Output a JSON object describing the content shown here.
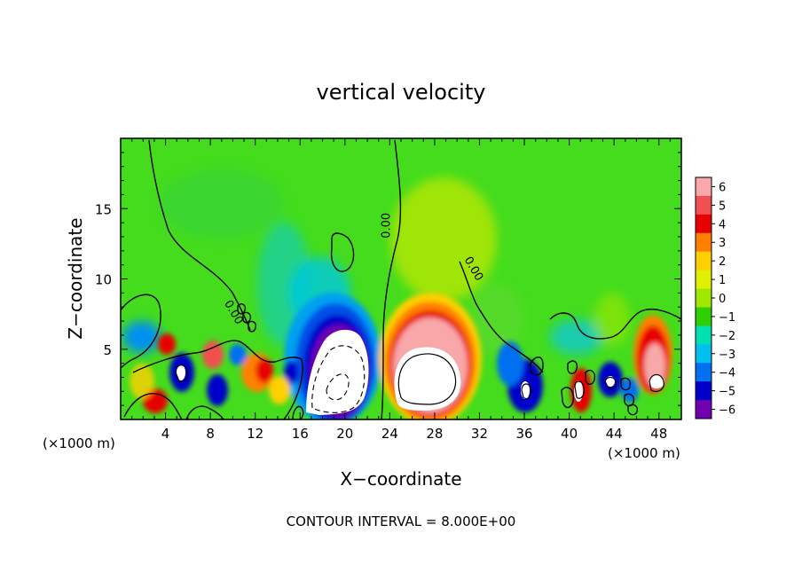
{
  "chart_data": {
    "type": "heatmap",
    "title": "vertical velocity",
    "xlabel": "X−coordinate",
    "ylabel": "Z−coordinate",
    "x_unit_left": "(×1000 m)",
    "x_unit_right": "(×1000 m)",
    "xlim": [
      0,
      50
    ],
    "ylim": [
      0,
      20
    ],
    "x_ticks": [
      4,
      8,
      12,
      16,
      20,
      24,
      28,
      32,
      36,
      40,
      44,
      48
    ],
    "y_ticks": [
      5,
      10,
      15
    ],
    "footer": "CONTOUR INTERVAL = 8.000E+00",
    "colorbar": {
      "levels": [
        "6",
        "5",
        "4",
        "3",
        "2",
        "1",
        "0",
        "−1",
        "−2",
        "−3",
        "−4",
        "−5",
        "−6"
      ],
      "colors": [
        "#f8a8a8",
        "#f05050",
        "#e80000",
        "#ff8000",
        "#ffd000",
        "#e0f000",
        "#a0e800",
        "#30d000",
        "#00e0b0",
        "#00c0f0",
        "#0070f0",
        "#0000c8",
        "#7000b0"
      ]
    },
    "contour_labels": [
      {
        "text": "0.00",
        "x": 9.8,
        "z": 7.5
      },
      {
        "text": "0.00",
        "x": 24.0,
        "z": 13.8
      },
      {
        "text": "0.00",
        "x": 31.2,
        "z": 10.6
      }
    ],
    "features": [
      {
        "kind": "updraft",
        "x": 27.5,
        "z": 3.4,
        "value": 6
      },
      {
        "kind": "updraft",
        "x": 46.8,
        "z": 3.8,
        "value": 4
      },
      {
        "kind": "updraft",
        "x": 40.8,
        "z": 2.2,
        "value": 4
      },
      {
        "kind": "updraft",
        "x": 11.5,
        "z": 3.0,
        "value": 3
      },
      {
        "kind": "updraft",
        "x": 2.5,
        "z": 1.8,
        "value": 3
      },
      {
        "kind": "updraft",
        "x": 8.3,
        "z": 4.3,
        "value": 4
      },
      {
        "kind": "downdraft",
        "x": 19.4,
        "z": 3.5,
        "value": -6
      },
      {
        "kind": "downdraft",
        "x": 5.2,
        "z": 3.2,
        "value": -5
      },
      {
        "kind": "downdraft",
        "x": 35.5,
        "z": 2.5,
        "value": -5
      },
      {
        "kind": "downdraft",
        "x": 43.5,
        "z": 2.8,
        "value": -5
      },
      {
        "kind": "downdraft",
        "x": 1.0,
        "z": 5.5,
        "value": -3
      },
      {
        "kind": "downdraft",
        "x": 10.5,
        "z": 4.5,
        "value": -3
      },
      {
        "kind": "downdraft",
        "x": 18.0,
        "z": 8.5,
        "value": -2
      }
    ]
  }
}
